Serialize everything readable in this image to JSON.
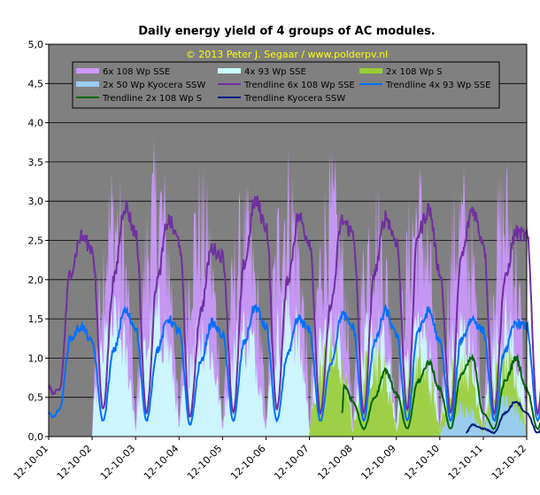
{
  "chart_data": {
    "type": "area",
    "title": "Daily energy yield of 4 groups of AC modules.",
    "subtitle": "© 2013 Peter J. Segaar / www.polderpv.nl",
    "xlabel": "",
    "ylabel": "",
    "xlim": [
      "12-10-01",
      "12-10-12"
    ],
    "ylim": [
      0,
      5
    ],
    "y_ticks": [
      "0,0",
      "0,5",
      "1,0",
      "1,5",
      "2,0",
      "2,5",
      "3,0",
      "3,5",
      "4,0",
      "4,5",
      "5,0"
    ],
    "x_ticks": [
      "12-10-01",
      "12-10-02",
      "12-10-03",
      "12-10-04",
      "12-10-05",
      "12-10-06",
      "12-10-07",
      "12-10-08",
      "12-10-09",
      "12-10-10",
      "12-10-11",
      "12-10-12"
    ],
    "grid": true,
    "legend_position": "top",
    "plot_background": "#808080",
    "series": [
      {
        "name": "6x 108 Wp SSE",
        "style": "area",
        "color": "#cc99ff",
        "peaks": [
          0.0,
          3.7,
          3.9,
          3.6,
          3.3,
          3.9,
          3.7,
          3.5,
          3.7,
          3.6,
          3.7,
          3.5
        ]
      },
      {
        "name": "4x 93 Wp SSE",
        "style": "area",
        "color": "#ccffff",
        "peaks": [
          0.0,
          1.9,
          2.0,
          1.8,
          1.8,
          2.1,
          1.9,
          1.8,
          1.9,
          1.8,
          1.9,
          1.9
        ]
      },
      {
        "name": "2x 108 Wp S",
        "style": "area",
        "color": "#99cc33",
        "peaks": [
          null,
          null,
          null,
          null,
          null,
          null,
          1.4,
          1.3,
          1.2,
          1.3,
          1.2,
          1.2
        ]
      },
      {
        "name": "2x 50 Wp Kyocera SSW",
        "style": "area",
        "color": "#99ccff",
        "peaks": [
          null,
          null,
          null,
          null,
          null,
          null,
          null,
          null,
          null,
          0.5,
          0.6,
          0.5
        ]
      },
      {
        "name": "Trendline 6x 108 Wp SSE",
        "style": "line",
        "color": "#7030a0",
        "x": [
          0.0,
          0.1,
          0.25,
          0.5,
          0.75,
          1.0,
          1.25,
          1.5,
          1.75,
          2.0,
          2.25,
          2.5,
          2.75,
          3.0,
          3.25,
          3.5,
          3.75,
          4.0,
          4.25,
          4.5,
          4.75,
          5.0,
          5.25,
          5.5,
          5.75,
          6.0,
          6.25,
          6.5,
          6.75,
          7.0,
          7.25,
          7.5,
          7.75,
          8.0,
          8.25,
          8.5,
          8.75,
          9.0,
          9.25,
          9.5,
          9.75,
          10.0,
          10.25,
          10.5,
          10.75,
          11.0,
          11.25,
          11.5,
          11.75,
          11.95
        ],
        "y": [
          0.65,
          0.55,
          0.6,
          2.1,
          2.55,
          2.4,
          0.35,
          2.0,
          2.95,
          2.6,
          0.3,
          2.0,
          2.75,
          2.5,
          0.25,
          1.6,
          2.4,
          2.3,
          0.3,
          2.2,
          3.0,
          2.7,
          0.35,
          2.0,
          2.8,
          2.5,
          0.3,
          1.7,
          2.75,
          2.6,
          0.3,
          2.1,
          2.8,
          2.5,
          0.35,
          2.6,
          2.9,
          2.1,
          0.3,
          2.3,
          2.9,
          2.5,
          0.3,
          2.0,
          2.6,
          2.55,
          0.3,
          1.9,
          2.5,
          0.4
        ]
      },
      {
        "name": "Trendline 4x 93 Wp SSE",
        "style": "line",
        "color": "#0070ff",
        "x": [
          0.0,
          0.1,
          0.25,
          0.5,
          0.75,
          1.0,
          1.25,
          1.5,
          1.75,
          2.0,
          2.25,
          2.5,
          2.75,
          3.0,
          3.25,
          3.5,
          3.75,
          4.0,
          4.25,
          4.5,
          4.75,
          5.0,
          5.25,
          5.5,
          5.75,
          6.0,
          6.25,
          6.5,
          6.75,
          7.0,
          7.25,
          7.5,
          7.75,
          8.0,
          8.25,
          8.5,
          8.75,
          9.0,
          9.25,
          9.5,
          9.75,
          10.0,
          10.25,
          10.5,
          10.75,
          11.0,
          11.25,
          11.5,
          11.75,
          11.95
        ],
        "y": [
          0.3,
          0.25,
          0.35,
          1.25,
          1.4,
          1.2,
          0.2,
          1.1,
          1.6,
          1.4,
          0.2,
          1.1,
          1.5,
          1.35,
          0.15,
          0.95,
          1.45,
          1.3,
          0.2,
          1.2,
          1.65,
          1.4,
          0.2,
          1.05,
          1.5,
          1.35,
          0.2,
          0.95,
          1.55,
          1.4,
          0.2,
          1.2,
          1.6,
          1.3,
          0.2,
          1.35,
          1.6,
          1.2,
          0.2,
          1.25,
          1.5,
          1.35,
          0.2,
          1.1,
          1.45,
          1.4,
          0.2,
          1.05,
          1.4,
          0.3
        ]
      },
      {
        "name": "Trendline 2x 108 Wp S",
        "style": "line",
        "color": "#006600",
        "x": [
          6.75,
          6.8,
          7.0,
          7.25,
          7.5,
          7.75,
          8.0,
          8.25,
          8.5,
          8.75,
          9.0,
          9.25,
          9.5,
          9.75,
          10.0,
          10.25,
          10.5,
          10.75,
          11.0,
          11.25,
          11.5,
          11.75,
          11.95
        ],
        "y": [
          0.3,
          0.65,
          0.45,
          0.1,
          0.5,
          0.85,
          0.55,
          0.1,
          0.7,
          0.95,
          0.6,
          0.1,
          0.8,
          1.0,
          0.3,
          0.1,
          0.7,
          1.0,
          0.6,
          0.1,
          0.6,
          0.85,
          0.3
        ]
      },
      {
        "name": "Trendline Kyocera SSW",
        "style": "line",
        "color": "#002080",
        "x": [
          9.6,
          9.75,
          10.0,
          10.25,
          10.5,
          10.75,
          11.0,
          11.25,
          11.5,
          11.75,
          11.95
        ],
        "y": [
          0.05,
          0.15,
          0.1,
          0.05,
          0.3,
          0.45,
          0.3,
          0.05,
          0.25,
          0.4,
          0.1
        ]
      }
    ]
  }
}
